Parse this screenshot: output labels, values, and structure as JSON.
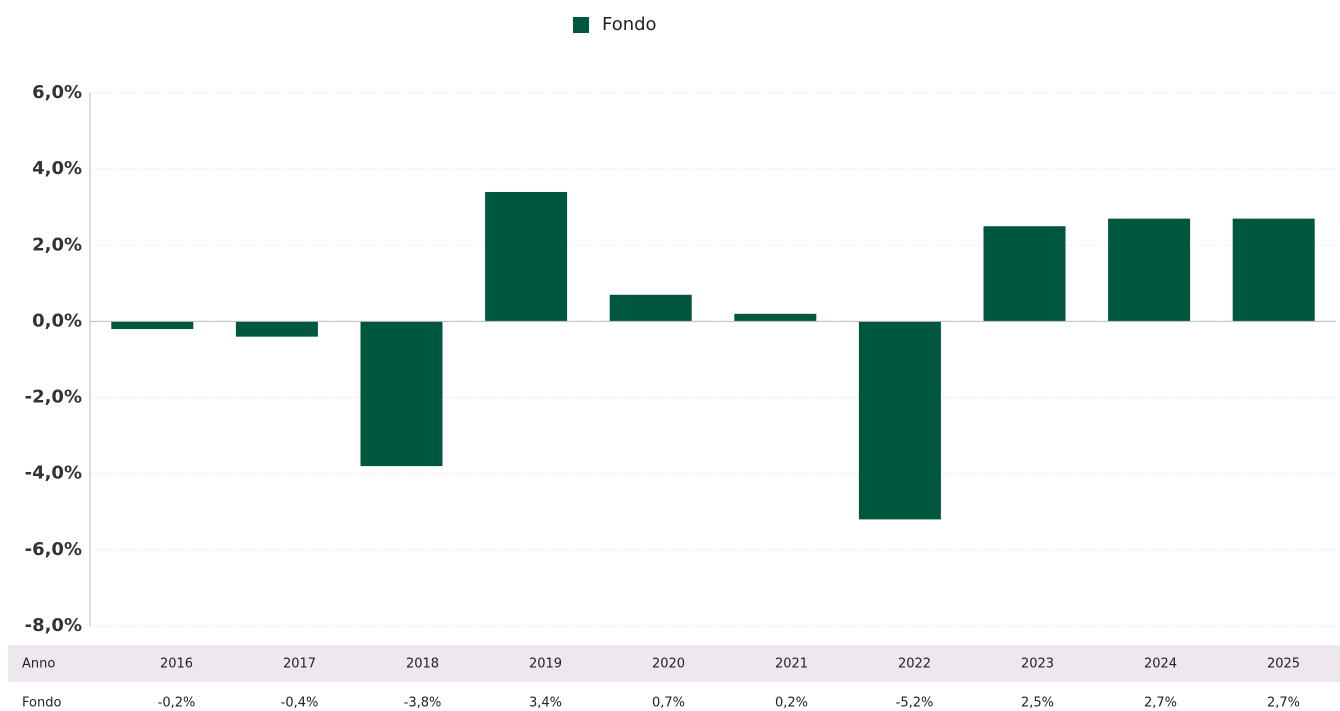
{
  "chart_data": {
    "type": "bar",
    "x_label": "Anno",
    "categories": [
      "2016",
      "2017",
      "2018",
      "2019",
      "2020",
      "2021",
      "2022",
      "2023",
      "2024",
      "2025"
    ],
    "series": [
      {
        "name": "Fondo",
        "color": "#00573f",
        "values": [
          -0.2,
          -0.4,
          -3.8,
          3.4,
          0.7,
          0.2,
          -5.2,
          2.5,
          2.7,
          2.7
        ],
        "value_labels": [
          "-0,2%",
          "-0,4%",
          "-3,8%",
          "3,4%",
          "0,7%",
          "0,2%",
          "-5,2%",
          "2,5%",
          "2,7%",
          "2,7%"
        ]
      }
    ],
    "ylim": [
      -8,
      6
    ],
    "yticks": [
      {
        "value": 6,
        "label": "6,0%"
      },
      {
        "value": 4,
        "label": "4,0%"
      },
      {
        "value": 2,
        "label": "2,0%"
      },
      {
        "value": 0,
        "label": "0,0%"
      },
      {
        "value": -2,
        "label": "-2,0%"
      },
      {
        "value": -4,
        "label": "-4,0%"
      },
      {
        "value": -6,
        "label": "-6,0%"
      },
      {
        "value": -8,
        "label": "-8,0%"
      }
    ],
    "grid": true,
    "legend": "top"
  }
}
